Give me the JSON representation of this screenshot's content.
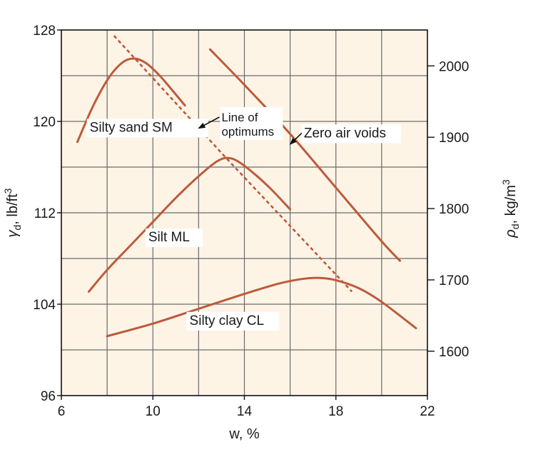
{
  "chart_data": {
    "type": "line",
    "xlabel": "w, %",
    "ylabel": "γd, lb/ft³",
    "ylabel_parts": {
      "symbol": "γ",
      "sub": "d",
      "rest": ", lb/ft",
      "sup": "3"
    },
    "y2label": "ρd, kg/m³",
    "y2label_parts": {
      "symbol": "ρ",
      "sub": "d",
      "rest": ", kg/m",
      "sup": "3"
    },
    "xlim": [
      6,
      22
    ],
    "ylim": [
      96,
      128
    ],
    "x_ticks": [
      6,
      10,
      14,
      18,
      22
    ],
    "x_tick_labels": [
      "6",
      "10",
      "14",
      "18",
      "22"
    ],
    "y_ticks": [
      96,
      104,
      112,
      120,
      128
    ],
    "y_tick_labels": [
      "96",
      "104",
      "112",
      "120",
      "128"
    ],
    "y2_ticks": [
      1600,
      1700,
      1800,
      1900,
      2000
    ],
    "y2_tick_labels": [
      "1600",
      "1700",
      "1800",
      "1900",
      "2000"
    ],
    "x_grid": [
      6,
      8,
      10,
      12,
      14,
      16,
      18,
      20,
      22
    ],
    "y_grid": [
      96,
      100,
      104,
      108,
      112,
      116,
      120,
      124,
      128
    ],
    "grid": true,
    "series": [
      {
        "name": "Silty sand SM",
        "style": "solid",
        "x": [
          6.7,
          7.4,
          8.1,
          8.7,
          9.2,
          9.7,
          10.3,
          10.9,
          11.4
        ],
        "y": [
          118.2,
          121.4,
          123.9,
          125.2,
          125.5,
          125.1,
          124.0,
          122.6,
          121.4
        ]
      },
      {
        "name": "Silt ML",
        "style": "solid",
        "x": [
          7.2,
          8.0,
          9.0,
          10.0,
          11.0,
          12.0,
          12.8,
          13.3,
          13.8,
          14.5,
          15.2,
          16.0
        ],
        "y": [
          105.1,
          107.0,
          109.1,
          111.2,
          113.3,
          115.2,
          116.5,
          116.8,
          116.4,
          115.3,
          114.0,
          112.3
        ]
      },
      {
        "name": "Silty clay CL",
        "style": "solid",
        "x": [
          8.0,
          10.0,
          12.0,
          14.0,
          15.5,
          16.5,
          17.3,
          18.0,
          19.0,
          20.0,
          21.5
        ],
        "y": [
          101.2,
          102.3,
          103.6,
          104.9,
          105.8,
          106.2,
          106.3,
          106.1,
          105.4,
          104.2,
          101.9
        ]
      },
      {
        "name": "Zero air voids",
        "style": "solid",
        "x": [
          12.5,
          14.0,
          16.0,
          18.0,
          20.0,
          20.8
        ],
        "y": [
          126.3,
          123.2,
          118.9,
          114.2,
          109.5,
          107.8
        ]
      },
      {
        "name": "Line of optimums",
        "style": "dashed",
        "x": [
          8.3,
          13.2,
          18.7
        ],
        "y": [
          127.5,
          116.8,
          105.1
        ]
      }
    ],
    "annotations": [
      {
        "id": "silty-sand",
        "lines": [
          "Silty sand SM"
        ],
        "x": 6.8,
        "y": 119.1
      },
      {
        "id": "line-of-optimums",
        "lines": [
          "Line of",
          "optimums"
        ],
        "x": 13.0,
        "y": 120.0,
        "arrow_to": {
          "x": 12.0,
          "y": 119.4
        }
      },
      {
        "id": "zero-air-voids",
        "lines": [
          "Zero air voids"
        ],
        "x": 16.6,
        "y": 118.6,
        "arrow_to": {
          "x": 16.0,
          "y": 118.0
        }
      },
      {
        "id": "silt-ml",
        "lines": [
          "Silt ML"
        ],
        "x": 9.8,
        "y": 109.5
      },
      {
        "id": "silty-clay",
        "lines": [
          "Silty clay CL"
        ],
        "x": 11.6,
        "y": 102.2
      }
    ],
    "colors": {
      "curve": "#bd5a3c",
      "grid": "#6b6b6b",
      "axis": "#111111",
      "fill": "#fdf4e6"
    }
  }
}
